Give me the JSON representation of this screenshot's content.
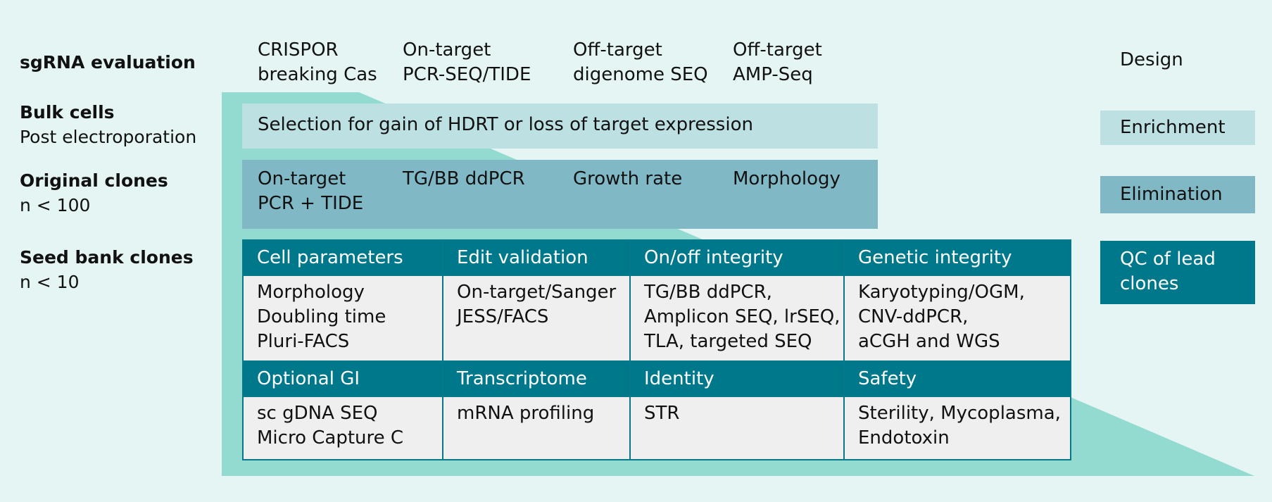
{
  "colors": {
    "background": "#e4f5f3",
    "funnel": "#93dbd1",
    "enrichment": "#bde0e3",
    "elimination": "#80b9c5",
    "qc": "#00788b",
    "table_body": "#efefef"
  },
  "rows": [
    {
      "title": "sgRNA evaluation",
      "subtitle": ""
    },
    {
      "title": "Bulk cells",
      "subtitle": "Post electroporation"
    },
    {
      "title": "Original clones",
      "subtitle": "n < 100"
    },
    {
      "title": "Seed bank clones",
      "subtitle": "n < 10"
    }
  ],
  "sgrna": [
    {
      "l1": "CRISPOR",
      "l2": "breaking Cas"
    },
    {
      "l1": "On-target",
      "l2": "PCR-SEQ/TIDE"
    },
    {
      "l1": "Off-target",
      "l2": "digenome SEQ"
    },
    {
      "l1": "Off-target",
      "l2": "AMP-Seq"
    }
  ],
  "bulk": {
    "text": "Selection for gain of HDRT or loss of target expression"
  },
  "clones": [
    {
      "l1": "On-target",
      "l2": "PCR + TIDE"
    },
    {
      "l1": "TG/BB ddPCR",
      "l2": ""
    },
    {
      "l1": "Growth rate",
      "l2": ""
    },
    {
      "l1": "Morphology",
      "l2": ""
    }
  ],
  "seed": {
    "headers1": [
      "Cell parameters",
      "Edit validation",
      "On/off integrity",
      "Genetic integrity"
    ],
    "body1": [
      [
        "Morphology",
        "Doubling time",
        "Pluri-FACS"
      ],
      [
        "On-target/Sanger",
        "JESS/FACS",
        ""
      ],
      [
        "TG/BB ddPCR,",
        "Amplicon SEQ, lrSEQ,",
        "TLA, targeted SEQ"
      ],
      [
        "Karyotyping/OGM,",
        "CNV-ddPCR,",
        "aCGH and WGS"
      ]
    ],
    "headers2": [
      "Optional GI",
      "Transcriptome",
      "Identity",
      "Safety"
    ],
    "body2": [
      [
        "sc gDNA SEQ",
        "Micro Capture C"
      ],
      [
        "mRNA profiling",
        ""
      ],
      [
        "STR",
        ""
      ],
      [
        "Sterility, Mycoplasma,",
        "Endotoxin"
      ]
    ]
  },
  "stages": {
    "design": "Design",
    "enrichment": "Enrichment",
    "elimination": "Elimination",
    "qc_l1": "QC of lead",
    "qc_l2": "clones"
  }
}
